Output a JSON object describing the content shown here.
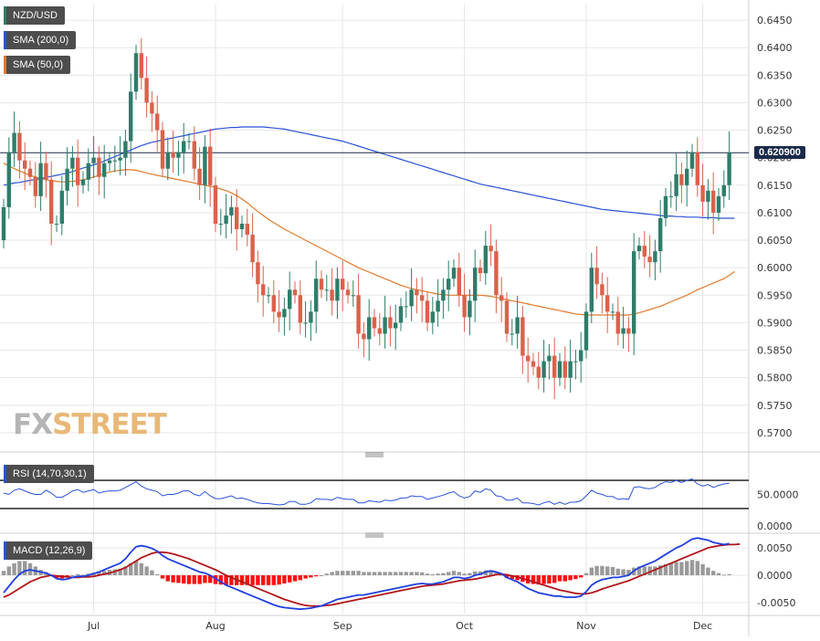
{
  "colors": {
    "up": "#2e7d6a",
    "down": "#d9624c",
    "sma200": "#2a52d9",
    "sma50": "#e07a2c",
    "rsi": "#2a52d9",
    "macd": "#1f3fe0",
    "signal": "#b0161a",
    "hist_pos": "#9a9a9a",
    "hist_neg": "#ff1010",
    "grid": "#e6e6e6",
    "price_line": "#1b2a4a"
  },
  "legend": {
    "pair": "NZD/USD",
    "sma200": "SMA (200,0)",
    "sma50": "SMA (50,0)",
    "rsi": "RSI (14,70,30,1)",
    "macd": "MACD (12,26,9)"
  },
  "logo": {
    "fx": "FX",
    "street": "STREET"
  },
  "chart_data": [
    {
      "type": "candlestick",
      "series_names": [
        "NZD/USD",
        "SMA (200,0)",
        "SMA (50,0)"
      ],
      "last_price": "0.620900",
      "y_range": [
        0.567,
        0.648
      ],
      "y_ticks": [
        "0.6450",
        "0.6400",
        "0.6350",
        "0.6300",
        "0.6250",
        "0.6200",
        "0.6150",
        "0.6100",
        "0.6050",
        "0.6000",
        "0.5950",
        "0.5900",
        "0.5850",
        "0.5800",
        "0.5750",
        "0.5700"
      ],
      "x_labels": [
        "Jul",
        "Aug",
        "Sep",
        "Oct",
        "Nov",
        "Dec"
      ],
      "x_label_index": [
        17,
        40,
        64,
        87,
        110,
        132
      ],
      "close": [
        0.611,
        0.621,
        0.6245,
        0.6195,
        0.618,
        0.6165,
        0.613,
        0.619,
        0.616,
        0.608,
        0.608,
        0.614,
        0.618,
        0.62,
        0.615,
        0.616,
        0.619,
        0.62,
        0.6165,
        0.619,
        0.6195,
        0.6195,
        0.62,
        0.623,
        0.632,
        0.639,
        0.6345,
        0.63,
        0.628,
        0.625,
        0.618,
        0.621,
        0.62,
        0.621,
        0.623,
        0.623,
        0.618,
        0.615,
        0.622,
        0.615,
        0.608,
        0.608,
        0.6095,
        0.611,
        0.607,
        0.608,
        0.606,
        0.601,
        0.597,
        0.595,
        0.595,
        0.592,
        0.591,
        0.5925,
        0.596,
        0.595,
        0.59,
        0.59,
        0.592,
        0.598,
        0.596,
        0.596,
        0.594,
        0.598,
        0.596,
        0.595,
        0.595,
        0.588,
        0.587,
        0.591,
        0.589,
        0.588,
        0.591,
        0.589,
        0.59,
        0.593,
        0.593,
        0.596,
        0.595,
        0.594,
        0.59,
        0.592,
        0.594,
        0.596,
        0.598,
        0.6,
        0.595,
        0.591,
        0.594,
        0.6,
        0.599,
        0.604,
        0.603,
        0.595,
        0.594,
        0.588,
        0.588,
        0.591,
        0.584,
        0.583,
        0.582,
        0.58,
        0.583,
        0.584,
        0.58,
        0.583,
        0.58,
        0.583,
        0.583,
        0.585,
        0.592,
        0.6,
        0.597,
        0.595,
        0.592,
        0.592,
        0.588,
        0.589,
        0.588,
        0.603,
        0.604,
        0.602,
        0.601,
        0.603,
        0.609,
        0.613,
        0.613,
        0.617,
        0.615,
        0.618,
        0.621,
        0.615,
        0.612,
        0.614,
        0.61,
        0.613,
        0.615,
        0.6209
      ],
      "open": [
        0.605,
        0.611,
        0.621,
        0.6245,
        0.6195,
        0.618,
        0.6165,
        0.613,
        0.619,
        0.616,
        0.608,
        0.608,
        0.614,
        0.618,
        0.62,
        0.615,
        0.616,
        0.619,
        0.62,
        0.6165,
        0.619,
        0.6195,
        0.6195,
        0.62,
        0.623,
        0.632,
        0.639,
        0.6345,
        0.63,
        0.628,
        0.625,
        0.618,
        0.621,
        0.62,
        0.621,
        0.623,
        0.623,
        0.618,
        0.615,
        0.622,
        0.615,
        0.608,
        0.608,
        0.6095,
        0.611,
        0.607,
        0.608,
        0.606,
        0.601,
        0.597,
        0.595,
        0.595,
        0.592,
        0.591,
        0.5925,
        0.596,
        0.595,
        0.59,
        0.59,
        0.592,
        0.598,
        0.596,
        0.596,
        0.594,
        0.598,
        0.596,
        0.595,
        0.595,
        0.588,
        0.587,
        0.591,
        0.589,
        0.588,
        0.591,
        0.589,
        0.59,
        0.593,
        0.593,
        0.596,
        0.595,
        0.594,
        0.59,
        0.592,
        0.594,
        0.596,
        0.598,
        0.6,
        0.595,
        0.591,
        0.594,
        0.6,
        0.599,
        0.604,
        0.603,
        0.595,
        0.594,
        0.588,
        0.588,
        0.591,
        0.584,
        0.583,
        0.582,
        0.58,
        0.583,
        0.584,
        0.58,
        0.583,
        0.58,
        0.583,
        0.583,
        0.585,
        0.592,
        0.6,
        0.597,
        0.595,
        0.592,
        0.592,
        0.588,
        0.589,
        0.588,
        0.603,
        0.604,
        0.602,
        0.601,
        0.603,
        0.609,
        0.613,
        0.613,
        0.617,
        0.615,
        0.618,
        0.621,
        0.615,
        0.612,
        0.614,
        0.61,
        0.613,
        0.615
      ],
      "sma200": [
        0.615,
        0.6152,
        0.6154,
        0.6155,
        0.6157,
        0.6159,
        0.616,
        0.6162,
        0.6164,
        0.6166,
        0.6168,
        0.617,
        0.6172,
        0.6175,
        0.6178,
        0.6181,
        0.6184,
        0.6187,
        0.619,
        0.6194,
        0.6198,
        0.6202,
        0.6206,
        0.621,
        0.6214,
        0.6218,
        0.6222,
        0.6225,
        0.6228,
        0.623,
        0.6232,
        0.6234,
        0.6236,
        0.6238,
        0.624,
        0.6242,
        0.6244,
        0.6246,
        0.6248,
        0.625,
        0.6252,
        0.6253,
        0.6254,
        0.6255,
        0.6255,
        0.6256,
        0.6256,
        0.6256,
        0.6256,
        0.6256,
        0.6255,
        0.6254,
        0.6253,
        0.6252,
        0.625,
        0.6248,
        0.6246,
        0.6244,
        0.6242,
        0.624,
        0.6238,
        0.6236,
        0.6234,
        0.6232,
        0.623,
        0.6227,
        0.6224,
        0.6221,
        0.6218,
        0.6215,
        0.6212,
        0.6209,
        0.6206,
        0.6203,
        0.62,
        0.6197,
        0.6194,
        0.6191,
        0.6188,
        0.6185,
        0.6182,
        0.6179,
        0.6176,
        0.6173,
        0.617,
        0.6167,
        0.6164,
        0.6161,
        0.6158,
        0.6155,
        0.6152,
        0.615,
        0.6148,
        0.6146,
        0.6144,
        0.6142,
        0.614,
        0.6138,
        0.6136,
        0.6134,
        0.6132,
        0.613,
        0.6128,
        0.6126,
        0.6124,
        0.6122,
        0.612,
        0.6118,
        0.6116,
        0.6114,
        0.6112,
        0.611,
        0.6108,
        0.6106,
        0.6105,
        0.6104,
        0.6103,
        0.6102,
        0.6101,
        0.61,
        0.6099,
        0.6098,
        0.6097,
        0.6096,
        0.6095,
        0.6094,
        0.6094,
        0.6093,
        0.6093,
        0.6092,
        0.6092,
        0.6092,
        0.6091,
        0.6091,
        0.6091,
        0.609,
        0.609,
        0.609,
        0.609
      ],
      "sma50": [
        0.619,
        0.6185,
        0.618,
        0.6176,
        0.6172,
        0.6168,
        0.6165,
        0.6162,
        0.616,
        0.6158,
        0.6157,
        0.6156,
        0.6156,
        0.6157,
        0.6158,
        0.616,
        0.6162,
        0.6165,
        0.6168,
        0.6171,
        0.6174,
        0.6176,
        0.6177,
        0.6178,
        0.6178,
        0.6177,
        0.6175,
        0.6172,
        0.617,
        0.6168,
        0.6166,
        0.6164,
        0.6162,
        0.616,
        0.6158,
        0.6156,
        0.6154,
        0.6152,
        0.615,
        0.6148,
        0.6146,
        0.6143,
        0.614,
        0.6136,
        0.6131,
        0.6125,
        0.6118,
        0.611,
        0.6102,
        0.6095,
        0.6088,
        0.6082,
        0.6076,
        0.607,
        0.6065,
        0.606,
        0.6055,
        0.605,
        0.6045,
        0.604,
        0.6035,
        0.603,
        0.6025,
        0.602,
        0.6015,
        0.601,
        0.6005,
        0.6,
        0.5996,
        0.5992,
        0.5988,
        0.5984,
        0.598,
        0.5976,
        0.5972,
        0.5968,
        0.5965,
        0.5962,
        0.596,
        0.5958,
        0.5956,
        0.5954,
        0.5952,
        0.5951,
        0.595,
        0.595,
        0.595,
        0.595,
        0.595,
        0.595,
        0.595,
        0.5949,
        0.5948,
        0.5946,
        0.5944,
        0.5942,
        0.594,
        0.5938,
        0.5936,
        0.5934,
        0.5932,
        0.593,
        0.5928,
        0.5926,
        0.5924,
        0.5922,
        0.592,
        0.5918,
        0.5916,
        0.5915,
        0.5914,
        0.5914,
        0.5914,
        0.5914,
        0.5914,
        0.5914,
        0.5914,
        0.5914,
        0.5914,
        0.5916,
        0.5918,
        0.5921,
        0.5924,
        0.5927,
        0.593,
        0.5934,
        0.5938,
        0.5942,
        0.5946,
        0.595,
        0.5955,
        0.596,
        0.5964,
        0.5968,
        0.5972,
        0.5976,
        0.598,
        0.5986,
        0.5993
      ]
    },
    {
      "type": "line",
      "series_names": [
        "RSI (14,70,30,1)"
      ],
      "levels": [
        70,
        30
      ],
      "level_label": "50.0000",
      "y_ticks": [
        "50.0000",
        "0.0000"
      ],
      "y_range": [
        0,
        100
      ],
      "values": [
        52,
        50,
        56,
        58,
        55,
        52,
        50,
        50,
        56,
        52,
        46,
        46,
        50,
        55,
        57,
        53,
        55,
        57,
        52,
        54,
        55,
        55,
        56,
        60,
        64,
        68,
        62,
        58,
        56,
        54,
        48,
        50,
        50,
        52,
        55,
        55,
        50,
        48,
        54,
        48,
        44,
        44,
        46,
        48,
        44,
        45,
        43,
        40,
        38,
        37,
        37,
        36,
        35,
        36,
        40,
        40,
        36,
        36,
        38,
        44,
        43,
        43,
        42,
        46,
        44,
        43,
        43,
        38,
        38,
        41,
        40,
        39,
        42,
        41,
        42,
        45,
        45,
        48,
        47,
        47,
        43,
        45,
        47,
        49,
        52,
        54,
        48,
        45,
        47,
        55,
        53,
        58,
        56,
        48,
        47,
        42,
        42,
        45,
        38,
        38,
        37,
        35,
        38,
        40,
        36,
        39,
        36,
        39,
        39,
        41,
        48,
        56,
        52,
        50,
        47,
        47,
        43,
        44,
        43,
        60,
        61,
        59,
        58,
        60,
        65,
        68,
        67,
        70,
        67,
        70,
        72,
        65,
        62,
        64,
        60,
        63,
        65,
        66
      ]
    },
    {
      "type": "line",
      "series_names": [
        "MACD (12,26,9)"
      ],
      "y_ticks": [
        "0.0050",
        "0.0000",
        "-0.0050"
      ],
      "y_range": [
        -0.007,
        0.007
      ],
      "macd": [
        -0.0032,
        -0.002,
        -0.0008,
        0.0002,
        0.0008,
        0.001,
        0.0008,
        0.0006,
        0.0004,
        0.0,
        -0.0006,
        -0.0008,
        -0.0007,
        -0.0004,
        -0.0002,
        -0.0002,
        0.0,
        0.0003,
        0.0006,
        0.001,
        0.0014,
        0.0018,
        0.0022,
        0.003,
        0.0042,
        0.0052,
        0.0054,
        0.0052,
        0.0049,
        0.0044,
        0.0036,
        0.003,
        0.0026,
        0.0022,
        0.0018,
        0.0014,
        0.001,
        0.0006,
        0.0004,
        0.0,
        -0.0006,
        -0.0012,
        -0.0018,
        -0.0022,
        -0.0026,
        -0.003,
        -0.0034,
        -0.0038,
        -0.0042,
        -0.0046,
        -0.005,
        -0.0054,
        -0.0057,
        -0.0059,
        -0.006,
        -0.0061,
        -0.0062,
        -0.0061,
        -0.006,
        -0.0058,
        -0.0056,
        -0.0052,
        -0.0048,
        -0.0044,
        -0.0042,
        -0.004,
        -0.0038,
        -0.0036,
        -0.0036,
        -0.0034,
        -0.0032,
        -0.003,
        -0.0028,
        -0.0026,
        -0.0024,
        -0.0022,
        -0.002,
        -0.0018,
        -0.0016,
        -0.0015,
        -0.0016,
        -0.0016,
        -0.0014,
        -0.0012,
        -0.0008,
        -0.0004,
        -0.0004,
        -0.0006,
        -0.0004,
        0.0,
        0.0002,
        0.0006,
        0.0008,
        0.0006,
        0.0003,
        -0.0004,
        -0.0008,
        -0.0012,
        -0.0018,
        -0.0024,
        -0.0028,
        -0.0032,
        -0.0034,
        -0.0036,
        -0.0038,
        -0.0038,
        -0.004,
        -0.004,
        -0.004,
        -0.0038,
        -0.003,
        -0.0018,
        -0.0012,
        -0.0008,
        -0.0006,
        -0.0004,
        -0.0004,
        -0.0002,
        0.0,
        0.0008,
        0.0014,
        0.0018,
        0.0022,
        0.0026,
        0.0032,
        0.0038,
        0.0044,
        0.005,
        0.0054,
        0.006,
        0.0066,
        0.0068,
        0.0066,
        0.0064,
        0.006,
        0.0058,
        0.0056,
        0.0058
      ],
      "signal": [
        -0.004,
        -0.0036,
        -0.003,
        -0.0024,
        -0.0018,
        -0.0012,
        -0.0008,
        -0.0004,
        -0.0002,
        0.0,
        -0.0001,
        -0.0002,
        -0.0003,
        -0.0004,
        -0.0004,
        -0.0003,
        -0.0003,
        -0.0002,
        0.0,
        0.0002,
        0.0004,
        0.0007,
        0.001,
        0.0014,
        0.002,
        0.0026,
        0.0032,
        0.0036,
        0.004,
        0.0042,
        0.0042,
        0.0041,
        0.0039,
        0.0036,
        0.0033,
        0.003,
        0.0026,
        0.0022,
        0.0018,
        0.0014,
        0.001,
        0.0005,
        0.0,
        -0.0004,
        -0.0008,
        -0.0012,
        -0.0016,
        -0.002,
        -0.0024,
        -0.0028,
        -0.0032,
        -0.0036,
        -0.004,
        -0.0044,
        -0.0047,
        -0.005,
        -0.0053,
        -0.0055,
        -0.0056,
        -0.0056,
        -0.0056,
        -0.0055,
        -0.0054,
        -0.0052,
        -0.005,
        -0.0048,
        -0.0046,
        -0.0044,
        -0.0042,
        -0.004,
        -0.0038,
        -0.0036,
        -0.0034,
        -0.0032,
        -0.003,
        -0.0028,
        -0.0026,
        -0.0024,
        -0.0022,
        -0.002,
        -0.0019,
        -0.0018,
        -0.0017,
        -0.0016,
        -0.0014,
        -0.0012,
        -0.001,
        -0.0009,
        -0.0008,
        -0.0007,
        -0.0005,
        -0.0003,
        -0.0001,
        0.0001,
        0.0002,
        0.0001,
        -0.0001,
        -0.0003,
        -0.0006,
        -0.0009,
        -0.0012,
        -0.0015,
        -0.0018,
        -0.0021,
        -0.0024,
        -0.0027,
        -0.0029,
        -0.0031,
        -0.0033,
        -0.0034,
        -0.0034,
        -0.0032,
        -0.0029,
        -0.0025,
        -0.0022,
        -0.0019,
        -0.0016,
        -0.0013,
        -0.001,
        -0.0006,
        -0.0002,
        0.0002,
        0.0006,
        0.001,
        0.0014,
        0.0018,
        0.0022,
        0.0026,
        0.003,
        0.0034,
        0.0038,
        0.0042,
        0.0046,
        0.005,
        0.0052,
        0.0054,
        0.0055,
        0.0056,
        0.0056,
        0.0057
      ]
    }
  ]
}
